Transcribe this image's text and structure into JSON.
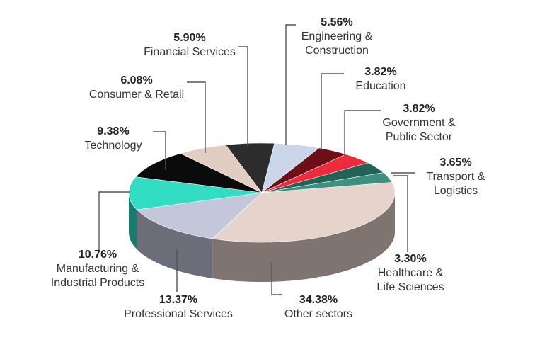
{
  "chart_data": {
    "type": "pie",
    "title": "",
    "slices": [
      {
        "label": "Other sectors",
        "value": 34.38,
        "color": "#e6d3cc"
      },
      {
        "label": "Professional Services",
        "value": 13.37,
        "color": "#c4c7da"
      },
      {
        "label": "Manufacturing & Industrial Products",
        "value": 10.76,
        "color": "#33ddc4"
      },
      {
        "label": "Technology",
        "value": 9.38,
        "color": "#0b0b0b"
      },
      {
        "label": "Consumer & Retail",
        "value": 6.08,
        "color": "#e2cdc3"
      },
      {
        "label": "Financial Services",
        "value": 5.9,
        "color": "#2c2c2c"
      },
      {
        "label": "Engineering & Construction",
        "value": 5.56,
        "color": "#cbd5ea"
      },
      {
        "label": "Education",
        "value": 3.82,
        "color": "#6e0f18"
      },
      {
        "label": "Government & Public Sector",
        "value": 3.82,
        "color": "#ee2a3d"
      },
      {
        "label": "Transport & Logistics",
        "value": 3.65,
        "color": "#1f6457"
      },
      {
        "label": "Healthcare & Life Sciences",
        "value": 3.3,
        "color": "#3e8f80"
      }
    ],
    "labels": {
      "financial": {
        "pct": "5.90%",
        "line1": "Financial Services"
      },
      "engineering": {
        "pct": "5.56%",
        "line1": "Engineering &",
        "line2": "Construction"
      },
      "education": {
        "pct": "3.82%",
        "line1": "Education"
      },
      "consumer": {
        "pct": "6.08%",
        "line1": "Consumer & Retail"
      },
      "government": {
        "pct": "3.82%",
        "line1": "Government &",
        "line2": "Public Sector"
      },
      "technology": {
        "pct": "9.38%",
        "line1": "Technology"
      },
      "transport": {
        "pct": "3.65%",
        "line1": "Transport &",
        "line2": "Logistics"
      },
      "manufacturing": {
        "pct": "10.76%",
        "line1": "Manufacturing &",
        "line2": "Industrial Products"
      },
      "healthcare": {
        "pct": "3.30%",
        "line1": "Healthcare &",
        "line2": "Life Sciences"
      },
      "professional": {
        "pct": "13.37%",
        "line1": "Professional Services"
      },
      "other": {
        "pct": "34.38%",
        "line1": "Other sectors"
      }
    }
  }
}
